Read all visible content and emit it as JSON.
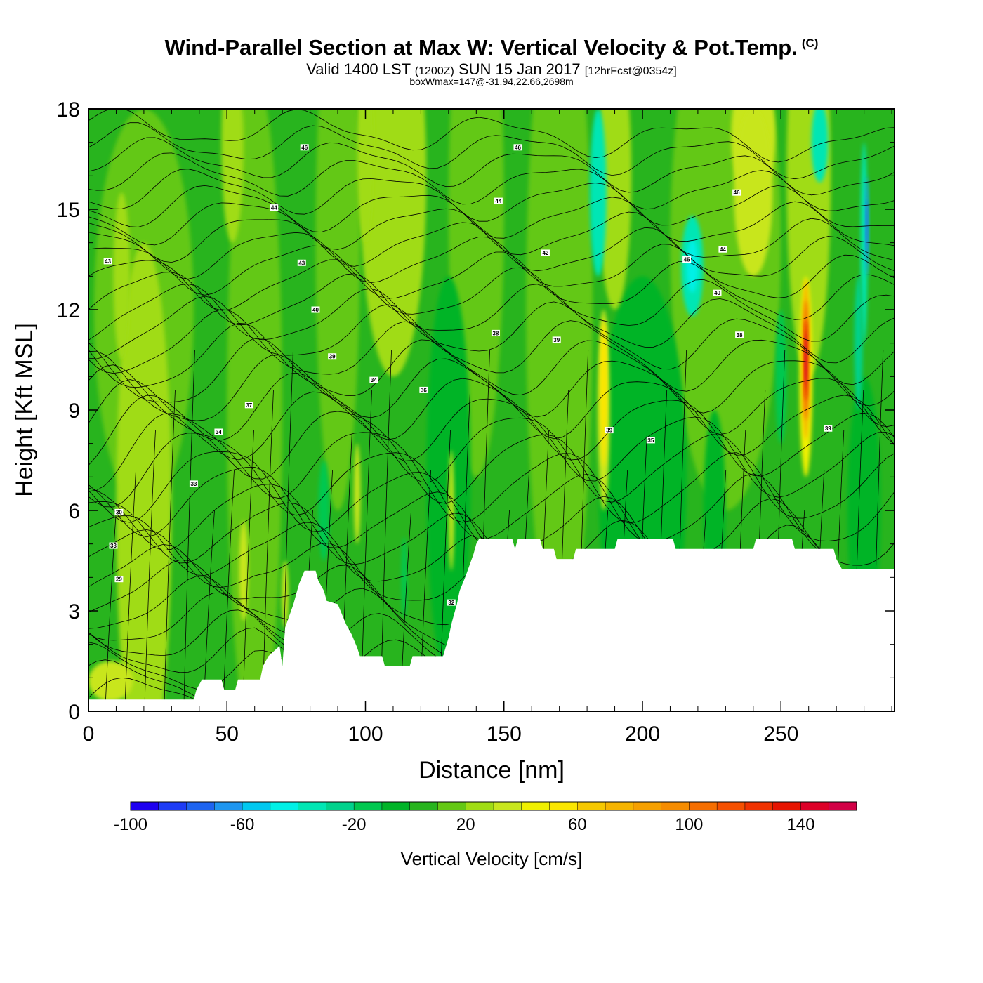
{
  "header": {
    "title": "Wind-Parallel Section at Max W: Vertical Velocity & Pot.Temp.",
    "copyright": "(C)",
    "subtitle_a": "Valid 1400 LST",
    "subtitle_b": "(1200Z)",
    "subtitle_c": "SUN 15 Jan 2017",
    "subtitle_d": "[12hrFcst@0354z]",
    "info": "boxWmax=147@-31.94,22.66,2698m"
  },
  "chart_data": {
    "type": "heatmap",
    "title": "Wind-Parallel Section at Max W: Vertical Velocity & Pot.Temp.",
    "xlabel": "Distance [nm]",
    "ylabel": "Height [Kft MSL]",
    "xlim": [
      0,
      291
    ],
    "ylim": [
      0,
      18
    ],
    "x_ticks": [
      0,
      50,
      100,
      150,
      200,
      250
    ],
    "x_tick_labels": [
      "0",
      "50",
      "100",
      "150",
      "200",
      "250"
    ],
    "y_ticks": [
      0,
      3,
      6,
      9,
      12,
      15,
      18
    ],
    "y_tick_labels": [
      "0",
      "3",
      "6",
      "9",
      "12",
      "15",
      "18"
    ],
    "colorbar": {
      "title": "Vertical Velocity [cm/s]",
      "min": -100,
      "max": 160,
      "step": 10,
      "tick_values": [
        -100,
        -60,
        -20,
        20,
        60,
        100,
        140
      ],
      "tick_labels": [
        "-100",
        "-60",
        "-20",
        "20",
        "60",
        "100",
        "140"
      ],
      "colors": [
        "#1e00f0",
        "#1e3cf5",
        "#1e64f0",
        "#1e96f0",
        "#00c8f0",
        "#00f0e6",
        "#00e6b4",
        "#00d28c",
        "#00c850",
        "#00b428",
        "#28b41e",
        "#64c814",
        "#a0dc14",
        "#c8e61e",
        "#f0f000",
        "#fae600",
        "#f5c800",
        "#f5b400",
        "#f5a000",
        "#f58c00",
        "#f56e00",
        "#f55000",
        "#f03200",
        "#e61400",
        "#dc0028",
        "#d20046"
      ]
    },
    "terrain": [
      [
        0,
        0.35
      ],
      [
        38,
        0.35
      ],
      [
        39,
        0.65
      ],
      [
        41,
        0.95
      ],
      [
        48,
        0.95
      ],
      [
        49,
        0.65
      ],
      [
        53,
        0.65
      ],
      [
        54,
        0.95
      ],
      [
        62,
        0.95
      ],
      [
        63,
        1.35
      ],
      [
        65,
        1.65
      ],
      [
        69,
        1.95
      ],
      [
        70,
        1.35
      ],
      [
        71,
        2.5
      ],
      [
        74,
        3.2
      ],
      [
        76,
        3.8
      ],
      [
        78,
        4.2
      ],
      [
        82,
        4.2
      ],
      [
        83,
        3.9
      ],
      [
        85,
        3.6
      ],
      [
        86,
        3.3
      ],
      [
        90,
        3.2
      ],
      [
        93,
        2.6
      ],
      [
        95,
        2.3
      ],
      [
        97,
        1.9
      ],
      [
        98,
        1.65
      ],
      [
        106,
        1.65
      ],
      [
        107,
        1.35
      ],
      [
        116,
        1.35
      ],
      [
        117,
        1.65
      ],
      [
        128,
        1.65
      ],
      [
        130,
        2.2
      ],
      [
        131,
        2.6
      ],
      [
        132,
        2.9
      ],
      [
        133,
        3.2
      ],
      [
        134,
        3.6
      ],
      [
        136,
        4.0
      ],
      [
        139,
        4.7
      ],
      [
        140,
        5.0
      ],
      [
        141,
        5.15
      ],
      [
        153,
        5.15
      ],
      [
        154,
        4.85
      ],
      [
        155,
        5.15
      ],
      [
        163,
        5.15
      ],
      [
        164,
        4.85
      ],
      [
        168,
        4.85
      ],
      [
        169,
        4.55
      ],
      [
        175,
        4.55
      ],
      [
        176,
        4.85
      ],
      [
        190,
        4.85
      ],
      [
        191,
        5.15
      ],
      [
        211,
        5.15
      ],
      [
        212,
        4.85
      ],
      [
        240,
        4.85
      ],
      [
        241,
        5.15
      ],
      [
        254,
        5.15
      ],
      [
        255,
        4.85
      ],
      [
        269,
        4.85
      ],
      [
        270,
        4.55
      ],
      [
        272,
        4.25
      ],
      [
        291,
        4.25
      ]
    ],
    "theta_labels": [
      {
        "x": 7,
        "y": 13.45,
        "text": "43"
      },
      {
        "x": 78,
        "y": 16.85,
        "text": "46"
      },
      {
        "x": 155,
        "y": 16.85,
        "text": "46"
      },
      {
        "x": 67,
        "y": 15.05,
        "text": "44"
      },
      {
        "x": 148,
        "y": 15.25,
        "text": "44"
      },
      {
        "x": 77,
        "y": 13.4,
        "text": "43"
      },
      {
        "x": 82,
        "y": 12.0,
        "text": "40"
      },
      {
        "x": 165,
        "y": 13.7,
        "text": "42"
      },
      {
        "x": 234,
        "y": 15.5,
        "text": "46"
      },
      {
        "x": 216,
        "y": 13.5,
        "text": "45"
      },
      {
        "x": 229,
        "y": 13.8,
        "text": "44"
      },
      {
        "x": 227,
        "y": 12.5,
        "text": "40"
      },
      {
        "x": 88,
        "y": 10.6,
        "text": "39"
      },
      {
        "x": 147,
        "y": 11.3,
        "text": "38"
      },
      {
        "x": 169,
        "y": 11.1,
        "text": "39"
      },
      {
        "x": 235,
        "y": 11.25,
        "text": "38"
      },
      {
        "x": 103,
        "y": 9.9,
        "text": "34"
      },
      {
        "x": 121,
        "y": 9.6,
        "text": "36"
      },
      {
        "x": 58,
        "y": 9.15,
        "text": "37"
      },
      {
        "x": 47,
        "y": 8.35,
        "text": "34"
      },
      {
        "x": 38,
        "y": 6.8,
        "text": "33"
      },
      {
        "x": 11,
        "y": 5.95,
        "text": "30"
      },
      {
        "x": 9,
        "y": 4.95,
        "text": "33"
      },
      {
        "x": 11,
        "y": 3.95,
        "text": "29"
      },
      {
        "x": 188,
        "y": 8.4,
        "text": "39"
      },
      {
        "x": 203,
        "y": 8.1,
        "text": "35"
      },
      {
        "x": 267,
        "y": 8.45,
        "text": "39"
      },
      {
        "x": 131,
        "y": 3.25,
        "text": "32"
      }
    ]
  }
}
